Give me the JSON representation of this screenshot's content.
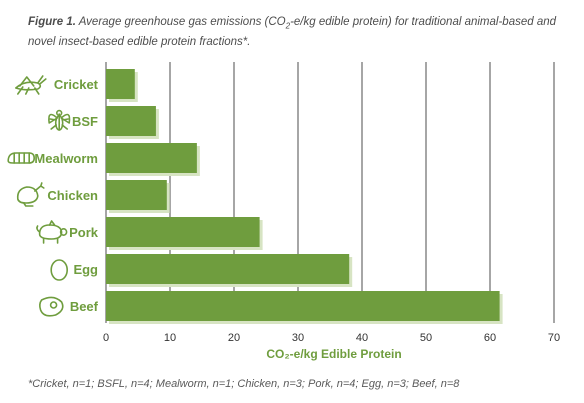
{
  "caption": {
    "label": "Figure 1.",
    "text_part1": "Average greenhouse gas emissions (CO",
    "sub": "2",
    "text_part2": "-e/kg edible protein) for traditional animal-based and novel insect-based edible protein fractions*."
  },
  "footnote": "*Cricket, n=1; BSFL, n=4; Mealworm, n=1; Chicken, n=3; Pork, n=4; Egg, n=3; Beef, n=8",
  "colors": {
    "bar": "#6f9d3e",
    "bar_shadow": "#d7e4c3",
    "label": "#6f9d3e",
    "grid": "#4d4d4d",
    "deco": "#f3c99a"
  },
  "chart_data": {
    "type": "bar",
    "orientation": "horizontal",
    "categories": [
      "Cricket",
      "BSF",
      "Mealworm",
      "Chicken",
      "Pork",
      "Egg",
      "Beef"
    ],
    "icons": [
      "cricket-icon",
      "fly-icon",
      "mealworm-icon",
      "chicken-icon",
      "pig-icon",
      "egg-icon",
      "steak-icon"
    ],
    "values": [
      4.5,
      7.8,
      14.2,
      9.5,
      24,
      38,
      61.5
    ],
    "xlabel": "CO₂-e/kg Edible Protein",
    "xlim": [
      0,
      70
    ],
    "xticks": [
      0,
      10,
      20,
      30,
      40,
      50,
      60,
      70
    ],
    "grid": true
  }
}
